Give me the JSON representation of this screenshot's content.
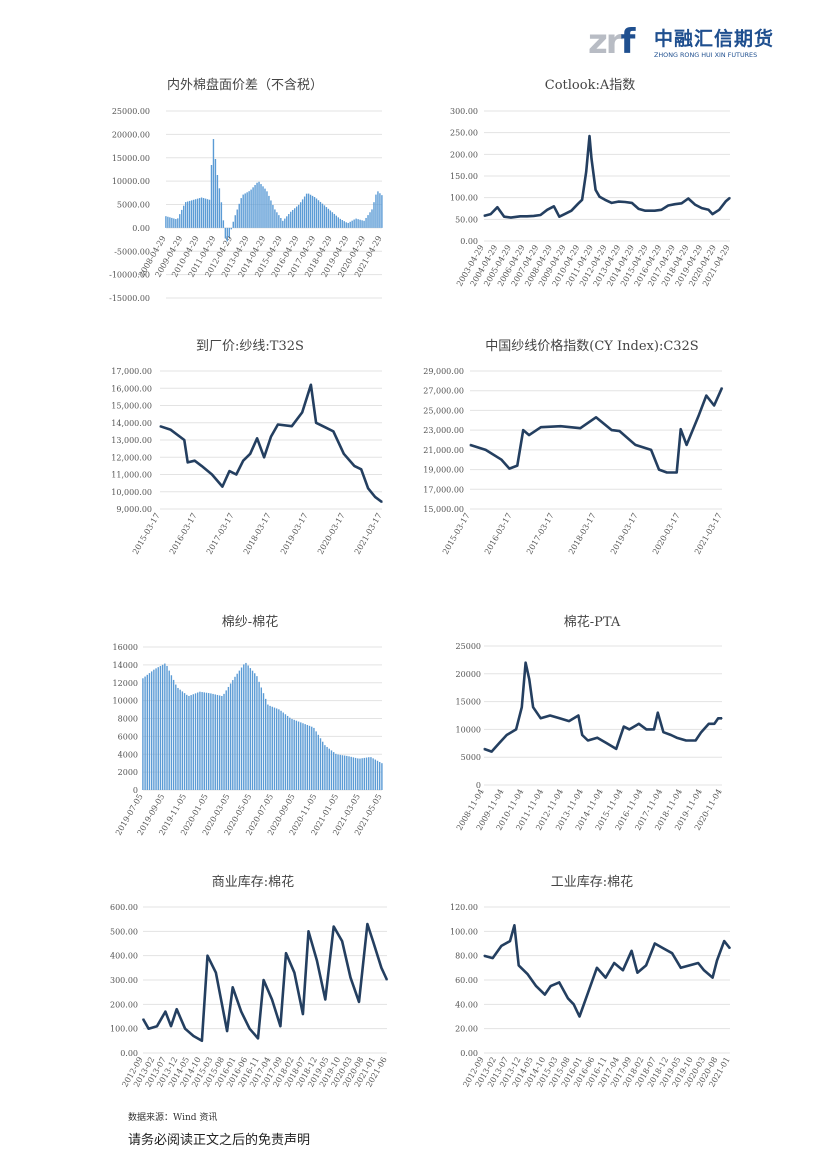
{
  "logo": {
    "mark_a": "zr",
    "mark_b": "f",
    "cn": "中融汇信期货",
    "en": "ZHONG RONG HUI XIN FUTURES",
    "color": "#1f4f8f"
  },
  "footer": {
    "source": "数据来源：Wind 资讯",
    "disclaimer": "请务必阅读正文之后的免责声明"
  },
  "chart_data": [
    {
      "id": "c1",
      "type": "bar",
      "title": "内外棉盘面价差（不含税）",
      "series_color": "#5b9bd5",
      "y_ticks": [
        "25000.00",
        "20000.00",
        "15000.00",
        "10000.00",
        "5000.00",
        "0.00",
        "-5000.00",
        "-10000.00",
        "-15000.00"
      ],
      "ylim": [
        -15000,
        25000
      ],
      "x_ticks": [
        "2008-04-29",
        "2009-04-29",
        "2010-04-29",
        "2011-04-29",
        "2012-04-29",
        "2013-04-29",
        "2014-04-29",
        "2015-04-29",
        "2016-04-29",
        "2017-04-29",
        "2018-04-29",
        "2019-04-29",
        "2020-04-29",
        "2021-04-29"
      ],
      "x": [
        2008.3,
        2009.0,
        2009.5,
        2010.0,
        2010.5,
        2011.0,
        2011.2,
        2011.4,
        2011.7,
        2012.0,
        2012.2,
        2012.5,
        2013.0,
        2013.5,
        2014.0,
        2014.5,
        2015.0,
        2015.5,
        2016.0,
        2016.5,
        2017.0,
        2017.5,
        2018.0,
        2018.5,
        2019.0,
        2019.5,
        2020.0,
        2020.5,
        2021.0,
        2021.3,
        2021.6
      ],
      "values": [
        2500,
        1800,
        5500,
        6000,
        6500,
        6000,
        20000,
        13000,
        6000,
        -3500,
        -2000,
        2000,
        7000,
        8000,
        10000,
        8000,
        4000,
        1500,
        3500,
        5000,
        7500,
        6500,
        5000,
        3500,
        2000,
        1000,
        2000,
        1500,
        4000,
        8000,
        7000
      ]
    },
    {
      "id": "c2",
      "type": "line",
      "title": "Cotlook:A指数",
      "series_color": "#243f60",
      "y_ticks": [
        "300.00",
        "250.00",
        "200.00",
        "150.00",
        "100.00",
        "50.00",
        "0.00"
      ],
      "ylim": [
        0,
        300
      ],
      "x_ticks": [
        "2003-04-29",
        "2004-04-29",
        "2005-04-29",
        "2006-04-29",
        "2007-04-29",
        "2008-04-29",
        "2009-04-29",
        "2010-04-29",
        "2011-04-29",
        "2012-04-29",
        "2013-04-29",
        "2014-04-29",
        "2015-04-29",
        "2016-04-29",
        "2017-04-29",
        "2018-04-29",
        "2019-04-29",
        "2020-04-29",
        "2021-04-29"
      ],
      "x": [
        2003.3,
        2003.8,
        2004.3,
        2004.8,
        2005.3,
        2006.0,
        2006.5,
        2007.0,
        2007.5,
        2008.0,
        2008.5,
        2008.9,
        2009.3,
        2009.8,
        2010.3,
        2010.6,
        2010.9,
        2011.15,
        2011.3,
        2011.6,
        2011.9,
        2012.3,
        2012.8,
        2013.3,
        2013.8,
        2014.3,
        2014.8,
        2015.3,
        2016.0,
        2016.5,
        2017.0,
        2017.5,
        2018.0,
        2018.5,
        2019.0,
        2019.5,
        2020.0,
        2020.3,
        2020.8,
        2021.3,
        2021.6
      ],
      "values": [
        58,
        62,
        78,
        56,
        54,
        57,
        57,
        58,
        60,
        72,
        80,
        56,
        62,
        70,
        86,
        95,
        160,
        242,
        190,
        118,
        102,
        95,
        88,
        91,
        90,
        88,
        74,
        70,
        70,
        72,
        82,
        85,
        87,
        98,
        84,
        76,
        72,
        62,
        72,
        92,
        100
      ]
    },
    {
      "id": "c3",
      "type": "line",
      "title": "到厂价:纱线:T32S",
      "series_color": "#243f60",
      "y_ticks": [
        "17,000.00",
        "16,000.00",
        "15,000.00",
        "14,000.00",
        "13,000.00",
        "12,000.00",
        "11,000.00",
        "10,000.00",
        "9,000.00"
      ],
      "ylim": [
        9000,
        17000
      ],
      "x_ticks": [
        "2015-03-17",
        "2016-03-17",
        "2017-03-17",
        "2018-03-17",
        "2019-03-17",
        "2020-03-17",
        "2021-03-17"
      ],
      "x": [
        2015.2,
        2015.5,
        2015.9,
        2016.0,
        2016.2,
        2016.4,
        2016.7,
        2017.0,
        2017.2,
        2017.4,
        2017.6,
        2017.8,
        2018.0,
        2018.2,
        2018.4,
        2018.6,
        2019.0,
        2019.3,
        2019.55,
        2019.7,
        2020.0,
        2020.2,
        2020.5,
        2020.8,
        2021.0,
        2021.2,
        2021.4,
        2021.6
      ],
      "values": [
        13800,
        13600,
        13000,
        11700,
        11800,
        11500,
        11000,
        10300,
        11200,
        11000,
        11800,
        12200,
        13100,
        12000,
        13200,
        13900,
        13800,
        14600,
        16200,
        14000,
        13700,
        13500,
        12200,
        11500,
        11300,
        10200,
        9700,
        9400
      ]
    },
    {
      "id": "c4",
      "type": "line",
      "title": "中国纱线价格指数(CY Index):C32S",
      "series_color": "#243f60",
      "y_ticks": [
        "29,000.00",
        "27,000.00",
        "25,000.00",
        "23,000.00",
        "21,000.00",
        "19,000.00",
        "17,000.00",
        "15,000.00"
      ],
      "ylim": [
        15000,
        29000
      ],
      "x_ticks": [
        "2015-03-17",
        "2016-03-17",
        "2017-03-17",
        "2018-03-17",
        "2019-03-17",
        "2020-03-17",
        "2021-03-17"
      ],
      "x": [
        2015.2,
        2015.6,
        2016.0,
        2016.2,
        2016.4,
        2016.55,
        2016.7,
        2017.0,
        2017.5,
        2018.0,
        2018.4,
        2018.8,
        2019.0,
        2019.4,
        2019.8,
        2020.0,
        2020.2,
        2020.45,
        2020.55,
        2020.7,
        2021.0,
        2021.2,
        2021.4,
        2021.6
      ],
      "values": [
        21500,
        21000,
        20000,
        19100,
        19400,
        23000,
        22500,
        23300,
        23400,
        23200,
        24300,
        23000,
        22900,
        21500,
        21000,
        19000,
        18700,
        18700,
        23100,
        21500,
        24400,
        26500,
        25500,
        27300
      ]
    },
    {
      "id": "c5",
      "type": "bar",
      "title": "棉纱-棉花",
      "series_color": "#5b9bd5",
      "y_ticks": [
        "16000",
        "14000",
        "12000",
        "10000",
        "8000",
        "6000",
        "4000",
        "2000",
        "0"
      ],
      "ylim": [
        0,
        16000
      ],
      "x_ticks": [
        "2019-07-05",
        "2019-09-05",
        "2019-11-05",
        "2020-01-05",
        "2020-03-05",
        "2020-05-05",
        "2020-07-05",
        "2020-09-05",
        "2020-11-05",
        "2021-01-05",
        "2021-03-05",
        "2021-05-05"
      ],
      "x": [
        2019.5,
        2019.6,
        2019.7,
        2019.8,
        2019.9,
        2020.0,
        2020.1,
        2020.2,
        2020.3,
        2020.4,
        2020.5,
        2020.6,
        2020.7,
        2020.8,
        2020.9,
        2021.0,
        2021.1,
        2021.2,
        2021.3,
        2021.4,
        2021.5,
        2021.6
      ],
      "values": [
        12500,
        13500,
        14200,
        11500,
        10500,
        11000,
        10800,
        10500,
        12500,
        14300,
        12800,
        9500,
        9000,
        8000,
        7500,
        7000,
        5000,
        4000,
        3800,
        3500,
        3700,
        3000
      ]
    },
    {
      "id": "c6",
      "type": "line",
      "title": "棉花-PTA",
      "series_color": "#243f60",
      "y_ticks": [
        "25000",
        "20000",
        "15000",
        "10000",
        "5000",
        "0"
      ],
      "ylim": [
        0,
        25000
      ],
      "x_ticks": [
        "2008-11-04",
        "2009-11-04",
        "2010-11-04",
        "2011-11-04",
        "2012-11-04",
        "2013-11-04",
        "2014-11-04",
        "2015-11-04",
        "2016-11-04",
        "2017-11-04",
        "2018-11-04",
        "2019-11-04",
        "2020-11-04"
      ],
      "x": [
        2008.8,
        2009.2,
        2009.6,
        2010.0,
        2010.5,
        2010.8,
        2011.0,
        2011.2,
        2011.4,
        2011.8,
        2012.3,
        2012.8,
        2013.3,
        2013.8,
        2014.0,
        2014.3,
        2014.8,
        2015.3,
        2015.8,
        2016.0,
        2016.2,
        2016.5,
        2017.0,
        2017.4,
        2017.8,
        2018.0,
        2018.3,
        2018.7,
        2019.0,
        2019.5,
        2020.0,
        2020.3,
        2020.7,
        2021.0,
        2021.2,
        2021.4
      ],
      "values": [
        6500,
        6000,
        7500,
        9000,
        10000,
        14000,
        22000,
        19000,
        14000,
        12000,
        12500,
        12000,
        11500,
        12500,
        9000,
        8000,
        8500,
        7500,
        6500,
        8500,
        10500,
        10000,
        11000,
        10000,
        10000,
        13000,
        9500,
        9000,
        8500,
        8000,
        8000,
        9500,
        11000,
        11000,
        12000,
        12000
      ]
    },
    {
      "id": "c7",
      "type": "line",
      "title": "商业库存:棉花",
      "series_color": "#243f60",
      "y_ticks": [
        "600.00",
        "500.00",
        "400.00",
        "300.00",
        "200.00",
        "100.00",
        "0.00"
      ],
      "ylim": [
        0,
        600
      ],
      "x_ticks": [
        "2012-09",
        "2013-02",
        "2013-07",
        "2013-12",
        "2014-05",
        "2014-10",
        "2015-03",
        "2015-08",
        "2016-01",
        "2016-06",
        "2016-11",
        "2017-04",
        "2017-09",
        "2018-02",
        "2018-07",
        "2018-12",
        "2019-05",
        "2019-10",
        "2020-03",
        "2020-08",
        "2021-01",
        "2021-06"
      ],
      "x": [
        2012.7,
        2012.9,
        2013.2,
        2013.5,
        2013.7,
        2013.9,
        2014.2,
        2014.5,
        2014.8,
        2015.0,
        2015.3,
        2015.5,
        2015.7,
        2015.9,
        2016.2,
        2016.5,
        2016.8,
        2017.0,
        2017.3,
        2017.6,
        2017.8,
        2018.1,
        2018.4,
        2018.6,
        2018.9,
        2019.2,
        2019.5,
        2019.8,
        2020.1,
        2020.4,
        2020.7,
        2020.9,
        2021.2,
        2021.4
      ],
      "values": [
        140,
        100,
        110,
        170,
        110,
        180,
        100,
        70,
        50,
        400,
        330,
        210,
        90,
        270,
        170,
        100,
        60,
        300,
        220,
        110,
        410,
        330,
        160,
        500,
        380,
        220,
        520,
        460,
        310,
        210,
        530,
        460,
        350,
        300
      ]
    },
    {
      "id": "c8",
      "type": "line",
      "title": "工业库存:棉花",
      "series_color": "#243f60",
      "y_ticks": [
        "120.00",
        "100.00",
        "80.00",
        "60.00",
        "40.00",
        "20.00",
        "0.00"
      ],
      "ylim": [
        0,
        120
      ],
      "x_ticks": [
        "2012-09",
        "2013-02",
        "2013-07",
        "2013-12",
        "2014-05",
        "2014-10",
        "2015-03",
        "2015-08",
        "2016-01",
        "2016-06",
        "2016-11",
        "2017-04",
        "2017-09",
        "2018-02",
        "2018-07",
        "2018-12",
        "2019-05",
        "2019-10",
        "2020-03",
        "2020-08",
        "2021-01"
      ],
      "x": [
        2012.7,
        2013.0,
        2013.3,
        2013.6,
        2013.75,
        2013.9,
        2014.2,
        2014.5,
        2014.8,
        2015.0,
        2015.3,
        2015.6,
        2015.8,
        2016.0,
        2016.3,
        2016.6,
        2016.9,
        2017.2,
        2017.5,
        2017.8,
        2018.0,
        2018.3,
        2018.6,
        2018.9,
        2019.2,
        2019.5,
        2019.8,
        2020.1,
        2020.3,
        2020.6,
        2020.75,
        2021.0,
        2021.2
      ],
      "values": [
        80,
        78,
        88,
        92,
        105,
        72,
        65,
        55,
        48,
        55,
        58,
        45,
        40,
        30,
        50,
        70,
        62,
        74,
        68,
        84,
        66,
        72,
        90,
        86,
        82,
        70,
        72,
        74,
        68,
        62,
        76,
        92,
        86
      ]
    }
  ]
}
